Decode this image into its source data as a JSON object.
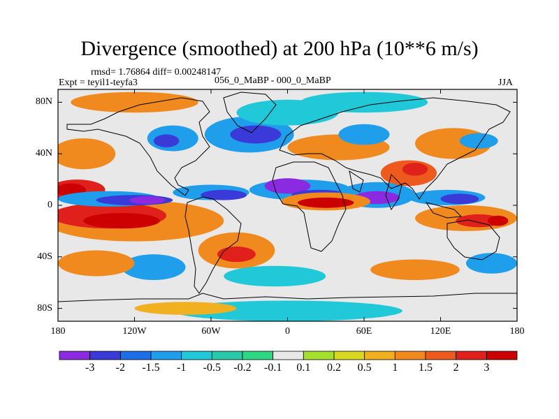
{
  "title": "Divergence (smoothed) at 200 hPa (10**6 m/s)",
  "stats": "rmsd= 1.76864 diff= 0.00248147",
  "experiment": "Expt = teyil1-teyfa3",
  "comparison": "056_0_MaBP - 000_0_MaBP",
  "season": "JJA",
  "chart_data": {
    "type": "heatmap",
    "variable": "Divergence (smoothed) at 200 hPa",
    "units": "10**6 m/s",
    "x_range": [
      -180,
      180
    ],
    "y_range": [
      -90,
      90
    ],
    "x_ticks": [
      "180",
      "120W",
      "60W",
      "0",
      "60E",
      "120E",
      "180"
    ],
    "y_ticks": [
      "80N",
      "40N",
      "0",
      "40S",
      "80S"
    ],
    "contour_levels": [
      "-3",
      "-2",
      "-1.5",
      "-1",
      "-0.5",
      "-0.2",
      "-0.1",
      "0.1",
      "0.2",
      "0.5",
      "1",
      "1.5",
      "2",
      "3"
    ],
    "colors": [
      "#8a2be2",
      "#3a3ad8",
      "#1e6fe6",
      "#1e9eeb",
      "#20c8d8",
      "#28c8a8",
      "#2ed882",
      "#e8e8e8",
      "#a6e02e",
      "#d8d820",
      "#f0b020",
      "#f08a1e",
      "#ee5a1e",
      "#e0201a",
      "#cc0000"
    ],
    "features": [
      {
        "type": "convergence",
        "lon": -140,
        "lat": 5,
        "value": -3
      },
      {
        "type": "convergence",
        "lon": -60,
        "lat": 10,
        "value": -2
      },
      {
        "type": "convergence",
        "lon": 0,
        "lat": 15,
        "value": -3
      },
      {
        "type": "convergence",
        "lon": 70,
        "lat": 8,
        "value": -3
      },
      {
        "type": "convergence",
        "lon": 130,
        "lat": 5,
        "value": -2
      },
      {
        "type": "divergence",
        "lon": -170,
        "lat": 12,
        "value": 3
      },
      {
        "type": "divergence",
        "lon": -120,
        "lat": -10,
        "value": 3
      },
      {
        "type": "divergence",
        "lon": 30,
        "lat": 5,
        "value": 3
      },
      {
        "type": "divergence",
        "lon": 140,
        "lat": -10,
        "value": 3
      },
      {
        "type": "divergence",
        "lon": 95,
        "lat": 25,
        "value": 2
      }
    ]
  }
}
